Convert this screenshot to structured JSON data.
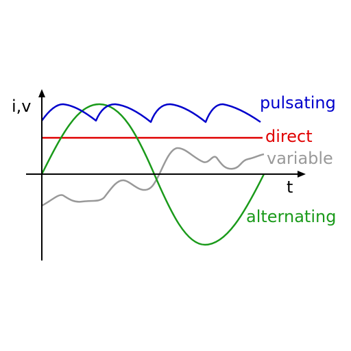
{
  "axes": {
    "y_label": "i,v",
    "x_label": "t"
  },
  "curves": {
    "pulsating": "pulsating",
    "direct": "direct",
    "variable": "variable",
    "alternating": "alternating"
  }
}
